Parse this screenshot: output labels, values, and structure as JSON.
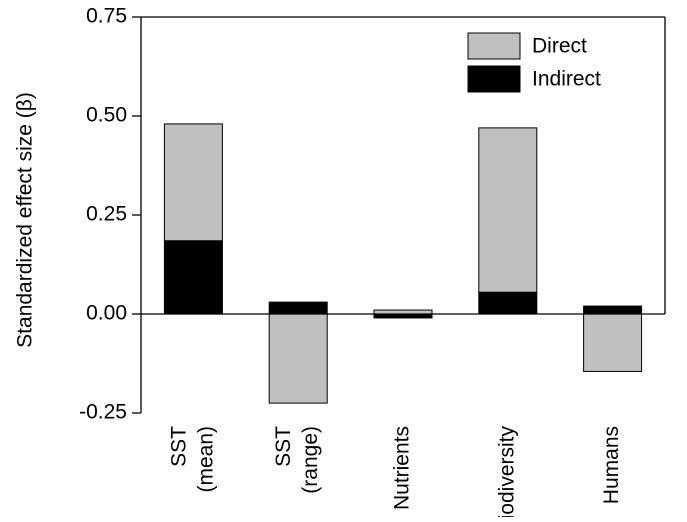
{
  "chart_data": {
    "type": "bar",
    "stacked": true,
    "categories": [
      [
        "SST",
        "(mean)"
      ],
      [
        "SST",
        "(range)"
      ],
      [
        "Nutrients"
      ],
      [
        "Biodiversity"
      ],
      [
        "Humans"
      ]
    ],
    "series": [
      {
        "name": "Direct",
        "color": "#c0c0c0",
        "values": [
          0.295,
          -0.225,
          0.01,
          0.415,
          -0.145
        ]
      },
      {
        "name": "Indirect",
        "color": "#000000",
        "values": [
          0.185,
          0.03,
          -0.01,
          0.055,
          0.02
        ]
      }
    ],
    "ylabel": "Standardized effect size (β)",
    "ylim": [
      -0.25,
      0.75
    ],
    "yticks": [
      -0.25,
      0.0,
      0.25,
      0.5,
      0.75
    ],
    "ytick_labels": [
      "-0.25",
      "0.00",
      "0.25",
      "0.50",
      "0.75"
    ],
    "legend_position": "top-right",
    "grid": false
  }
}
